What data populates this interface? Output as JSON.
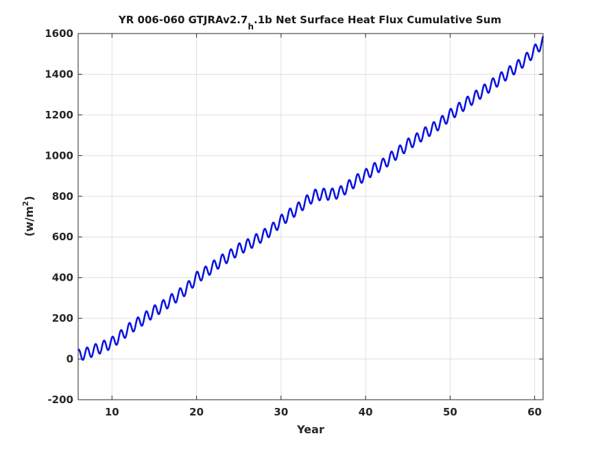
{
  "chart_data": {
    "type": "line",
    "title": {
      "prefix": "YR 006-060 GTJRAv2.7",
      "subscript": "h",
      "suffix": ".1b Net Surface Heat Flux  Cumulative Sum"
    },
    "xlabel": "Year",
    "ylabel": {
      "base": "(w/m",
      "sup": "2",
      "close": ")"
    },
    "xlim": [
      6,
      61
    ],
    "ylim": [
      -200,
      1600
    ],
    "xticks": [
      10,
      20,
      30,
      40,
      50,
      60
    ],
    "yticks": [
      -200,
      0,
      200,
      400,
      600,
      800,
      1000,
      1200,
      1400,
      1600
    ],
    "grid": true,
    "line_color": "#0a14e0",
    "series": [
      {
        "seasonal_amplitude": 28,
        "x": [
          6,
          7,
          8,
          9,
          10,
          11,
          12,
          13,
          14,
          15,
          16,
          17,
          18,
          19,
          20,
          21,
          22,
          23,
          24,
          25,
          26,
          27,
          28,
          29,
          30,
          31,
          32,
          33,
          34,
          35,
          36,
          37,
          38,
          39,
          40,
          41,
          42,
          43,
          44,
          45,
          46,
          47,
          48,
          49,
          50,
          51,
          52,
          53,
          54,
          55,
          56,
          57,
          58,
          59,
          60,
          61
        ],
        "y": [
          18,
          28,
          45,
          62,
          80,
          112,
          148,
          175,
          205,
          235,
          260,
          290,
          318,
          352,
          400,
          425,
          455,
          485,
          510,
          540,
          560,
          585,
          610,
          640,
          680,
          710,
          740,
          775,
          805,
          810,
          810,
          820,
          850,
          880,
          905,
          935,
          955,
          990,
          1020,
          1055,
          1080,
          1110,
          1135,
          1165,
          1200,
          1230,
          1260,
          1290,
          1320,
          1350,
          1380,
          1410,
          1440,
          1475,
          1515,
          1560
        ]
      }
    ]
  }
}
